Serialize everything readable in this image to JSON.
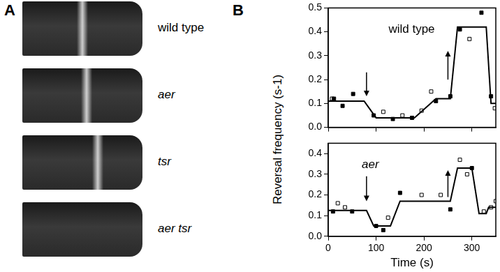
{
  "panel_a": {
    "label": "A",
    "strains": [
      "wild type",
      "aer",
      "tsr",
      "aer tsr"
    ]
  },
  "panel_b": {
    "label": "B",
    "y_label": "Reversal frequency (s-1)"
  },
  "chart_data": [
    {
      "type": "line",
      "title": "wild type",
      "xlim": [
        0,
        350
      ],
      "xticks": [
        0,
        100,
        200,
        300
      ],
      "ylim": [
        0,
        0.5
      ],
      "yticks": [
        {
          "value": 0,
          "label": "0.0"
        },
        0.1,
        0.2,
        0.3,
        0.4,
        0.5
      ],
      "tick_labels": "y",
      "grid": false,
      "arrows": [
        {
          "x": 80,
          "from": 0.23,
          "to": 0.13
        },
        {
          "x": 250,
          "from": 0.2,
          "to": 0.32
        }
      ],
      "series": [
        {
          "type": "line",
          "color": "#000000",
          "line_style": "solid",
          "x": [
            0,
            75,
            100,
            180,
            225,
            255,
            270,
            330,
            340,
            350
          ],
          "values": [
            0.11,
            0.11,
            0.04,
            0.04,
            0.12,
            0.12,
            0.42,
            0.42,
            0.1,
            0.1
          ]
        },
        {
          "type": "scatter",
          "marker": "square",
          "color": "#000000",
          "x": [
            12,
            30,
            52,
            95,
            135,
            175,
            225,
            255,
            275,
            320,
            340
          ],
          "values": [
            0.12,
            0.09,
            0.14,
            0.05,
            0.035,
            0.04,
            0.11,
            0.13,
            0.41,
            0.48,
            0.13
          ]
        },
        {
          "type": "scatter",
          "marker": "square-open",
          "color": "#000000",
          "x": [
            8,
            115,
            155,
            195,
            215,
            295,
            348
          ],
          "values": [
            0.12,
            0.065,
            0.05,
            0.07,
            0.15,
            0.37,
            0.08
          ]
        }
      ]
    },
    {
      "type": "line",
      "title": "aer",
      "x_label": "Time (s)",
      "xlim": [
        0,
        350
      ],
      "xticks": [
        0,
        100,
        200,
        300
      ],
      "ylim": [
        0,
        0.45
      ],
      "yticks": [
        {
          "value": 0,
          "label": "0.0"
        },
        0.1,
        0.2,
        0.3,
        0.4
      ],
      "grid": false,
      "arrows": [
        {
          "x": 80,
          "from": 0.29,
          "to": 0.17
        },
        {
          "x": 250,
          "from": 0.19,
          "to": 0.32
        }
      ],
      "series": [
        {
          "type": "line",
          "color": "#000000",
          "line_style": "solid",
          "x": [
            0,
            80,
            95,
            130,
            150,
            255,
            270,
            300,
            315,
            330,
            335,
            350
          ],
          "values": [
            0.125,
            0.125,
            0.05,
            0.05,
            0.17,
            0.17,
            0.33,
            0.33,
            0.11,
            0.11,
            0.14,
            0.14
          ]
        },
        {
          "type": "scatter",
          "marker": "square",
          "color": "#000000",
          "x": [
            10,
            50,
            100,
            115,
            150,
            255,
            300
          ],
          "values": [
            0.12,
            0.12,
            0.05,
            0.03,
            0.21,
            0.13,
            0.33
          ]
        },
        {
          "type": "scatter",
          "marker": "square-open",
          "color": "#000000",
          "x": [
            20,
            35,
            125,
            195,
            235,
            275,
            290,
            325,
            340,
            350
          ],
          "values": [
            0.16,
            0.14,
            0.09,
            0.2,
            0.2,
            0.37,
            0.3,
            0.12,
            0.14,
            0.17
          ]
        }
      ]
    }
  ]
}
